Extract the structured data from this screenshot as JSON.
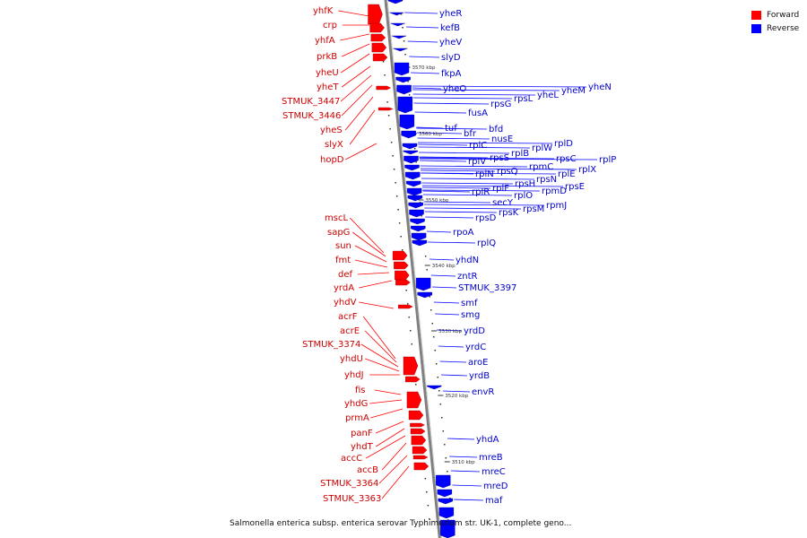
{
  "colors": {
    "forward": "#ff0000",
    "reverse": "#0000ff",
    "axis": "#808080"
  },
  "legend": {
    "forward": "Forward",
    "reverse": "Reverse"
  },
  "caption": "Salmonella enterica subsp. enterica serovar Typhimurium str. UK-1, complete geno...",
  "scale_marks": [
    "3570 kbp",
    "3560 kbp",
    "3550 kbp",
    "3540 kbp",
    "3530 kbp",
    "3520 kbp",
    "3510 kbp"
  ],
  "forward_genes": [
    "yhfK",
    "crp",
    "yhfA",
    "prkB",
    "yheU",
    "yheT",
    "STMUK_3447",
    "STMUK_3446",
    "yheS",
    "slyX",
    "hopD",
    "mscL",
    "sapG",
    "sun",
    "fmt",
    "def",
    "yrdA",
    "yhdV",
    "acrF",
    "acrE",
    "STMUK_3374",
    "yhdU",
    "yhdJ",
    "fis",
    "yhdG",
    "prmA",
    "panF",
    "yhdT",
    "accC",
    "accB",
    "STMUK_3364",
    "STMUK_3363"
  ],
  "reverse_genes": [
    "yheR",
    "kefB",
    "yheV",
    "slyD",
    "fkpA",
    "yheO",
    "yheN",
    "yheM",
    "yheL",
    "rpsL",
    "rpsG",
    "fusA",
    "tuf",
    "bfd",
    "bfr",
    "nusE",
    "rplD",
    "rplW",
    "rplB",
    "rplC",
    "rpsS",
    "rplV",
    "rpsC",
    "rplP",
    "rpmC",
    "rpsQ",
    "rplN",
    "rplX",
    "rplE",
    "rpsN",
    "rpsH",
    "rplF",
    "rplR",
    "rpsE",
    "rpmD",
    "rplO",
    "secY",
    "rpmJ",
    "rpsM",
    "rpsK",
    "rpsD",
    "rpoA",
    "rplQ",
    "yhdN",
    "zntR",
    "STMUK_3397",
    "smf",
    "smg",
    "yrdD",
    "yrdC",
    "aroE",
    "yrdB",
    "envR",
    "yhdA",
    "mreB",
    "mreC",
    "mreD",
    "maf"
  ]
}
